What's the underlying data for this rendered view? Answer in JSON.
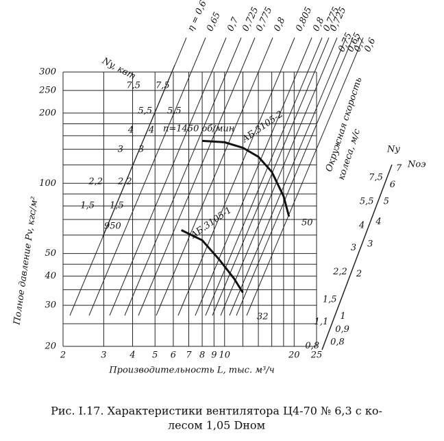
{
  "chart_data": {
    "type": "line",
    "caption": [
      "Рис. I.17. Характеристики вентилятора Ц4-70 № 6,3 с ко-",
      "лесом 1,05 Dном"
    ],
    "x_label": "Производительность L, тыс. м³/ч",
    "y_label": "Полное давление Pv, кгс/м²",
    "xscale": "log",
    "yscale": "log",
    "xlim": [
      2,
      25
    ],
    "xticks": [
      2,
      3,
      4,
      5,
      6,
      7,
      8,
      9,
      10,
      20,
      25
    ],
    "ylim": [
      20,
      300
    ],
    "yticks": [
      20,
      30,
      40,
      50,
      100,
      200,
      250,
      300
    ],
    "xgrid": [
      2,
      3,
      4,
      5,
      6,
      7,
      8,
      9,
      10,
      12,
      14,
      16,
      18,
      20,
      25
    ],
    "ygrid": [
      20,
      25,
      30,
      35,
      40,
      45,
      50,
      60,
      70,
      80,
      90,
      100,
      120,
      140,
      160,
      180,
      200,
      250,
      300
    ],
    "grid": true,
    "series": [
      {
        "name": "АБ.3105-2",
        "color": "#111111",
        "x": [
          8,
          10,
          12,
          14,
          16,
          18,
          19
        ],
        "values": [
          152,
          150,
          142,
          130,
          112,
          88,
          72
        ]
      },
      {
        "name": "АБ.3105-1",
        "color": "#111111",
        "x": [
          6.5,
          8,
          9.5,
          11,
          12
        ],
        "values": [
          63,
          57,
          47,
          39,
          34
        ]
      }
    ],
    "power_label": "Ny, квт",
    "power_values": [
      "7,5",
      "5,5",
      "4",
      "3",
      "2,2",
      "1,5"
    ],
    "efficiency_labels": [
      "η = 0,6",
      "0,65",
      "0,7",
      "0,725",
      "0,775",
      "0,8",
      "0,805",
      "0,8",
      "0,775",
      "0,725",
      "0,75",
      "0,65",
      "0,7",
      "0,6"
    ],
    "speed_label": [
      "Окружная скорость",
      "колеса, м/с"
    ],
    "curve_notes": [
      "n=1450 об/мин",
      "950",
      "50",
      "32"
    ],
    "nomogram": {
      "left_label": "Ny",
      "right_label": "Nоэ",
      "left_ticks": [
        "7,5",
        "5,5",
        "4",
        "3",
        "2,2",
        "1,5",
        "1,1",
        "0,8"
      ],
      "right_ticks": [
        "7",
        "6",
        "5",
        "4",
        "3",
        "2",
        "1",
        "0,9",
        "0,8"
      ]
    }
  }
}
